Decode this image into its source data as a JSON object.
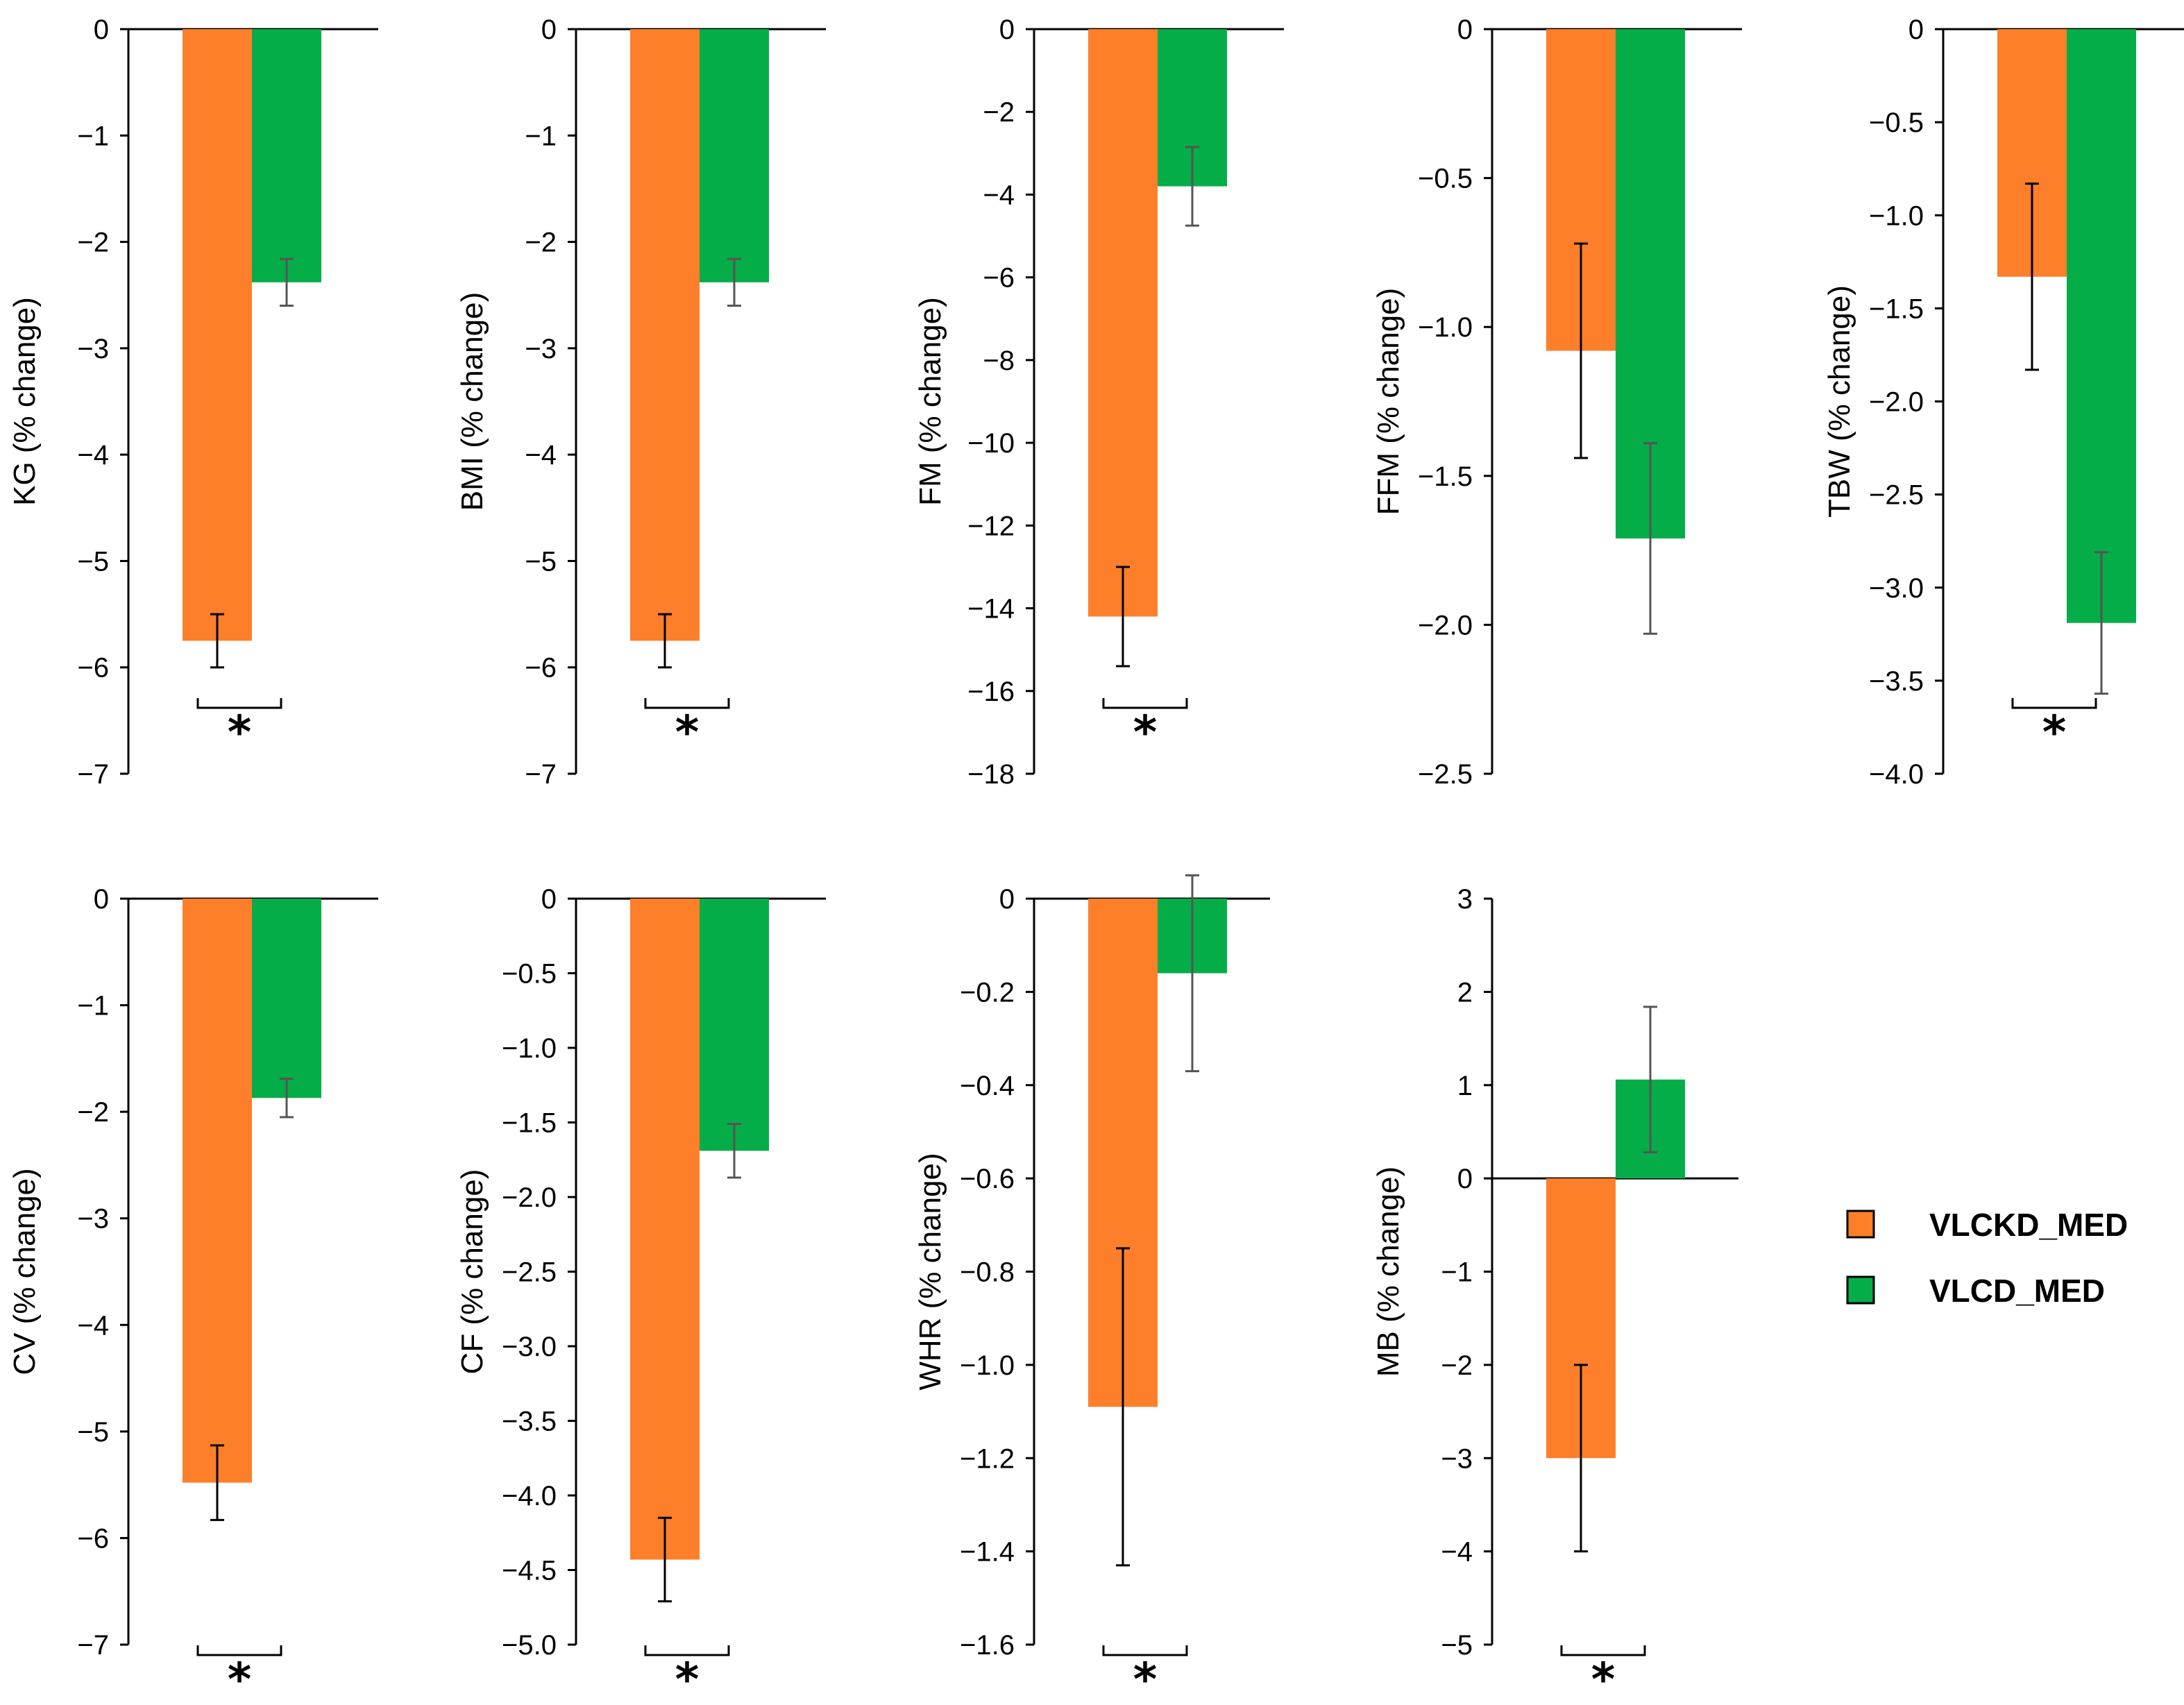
{
  "legend": [
    {
      "label": "VLCKD_MED",
      "color": "#fe7f2a"
    },
    {
      "label": "VLCD_MED",
      "color": "#05ad48"
    }
  ],
  "significance_marker": "*",
  "chart_data": [
    {
      "type": "bar",
      "ylabel": "KG (% change)",
      "ylim": [
        -7,
        0
      ],
      "ticks": [
        0,
        -1,
        -2,
        -3,
        -4,
        -5,
        -6,
        -7
      ],
      "tick_labels": [
        "0",
        "−1",
        "−2",
        "−3",
        "−4",
        "−5",
        "−6",
        "−7"
      ],
      "series": [
        {
          "name": "VLCKD_MED",
          "value": -5.75,
          "error": 0.25
        },
        {
          "name": "VLCD_MED",
          "value": -2.38,
          "error": 0.22
        }
      ],
      "significant": true
    },
    {
      "type": "bar",
      "ylabel": "BMI  (% change)",
      "ylim": [
        -7,
        0
      ],
      "ticks": [
        0,
        -1,
        -2,
        -3,
        -4,
        -5,
        -6,
        -7
      ],
      "tick_labels": [
        "0",
        "−1",
        "−2",
        "−3",
        "−4",
        "−5",
        "−6",
        "−7"
      ],
      "series": [
        {
          "name": "VLCKD_MED",
          "value": -5.75,
          "error": 0.25
        },
        {
          "name": "VLCD_MED",
          "value": -2.38,
          "error": 0.22
        }
      ],
      "significant": true
    },
    {
      "type": "bar",
      "ylabel": "FM (% change)",
      "ylim": [
        -18,
        0
      ],
      "ticks": [
        0,
        -2,
        -4,
        -6,
        -8,
        -10,
        -12,
        -14,
        -16,
        -18
      ],
      "tick_labels": [
        "0",
        "−2",
        "−4",
        "−6",
        "−8",
        "−10",
        "−12",
        "−14",
        "−16",
        "−18"
      ],
      "series": [
        {
          "name": "VLCKD_MED",
          "value": -14.2,
          "error": 1.2
        },
        {
          "name": "VLCD_MED",
          "value": -3.8,
          "error": 0.95
        }
      ],
      "significant": true
    },
    {
      "type": "bar",
      "ylabel": "FFM (% change)",
      "ylim": [
        -2.5,
        0
      ],
      "ticks": [
        0,
        -0.5,
        -1.0,
        -1.5,
        -2.0,
        -2.5
      ],
      "tick_labels": [
        "0",
        "−0.5",
        "−1.0",
        "−1.5",
        "−2.0",
        "−2.5"
      ],
      "series": [
        {
          "name": "VLCKD_MED",
          "value": -1.08,
          "error": 0.36
        },
        {
          "name": "VLCD_MED",
          "value": -1.71,
          "error": 0.32
        }
      ],
      "significant": false
    },
    {
      "type": "bar",
      "ylabel": "TBW (% change)",
      "ylim": [
        -4.0,
        0
      ],
      "ticks": [
        0,
        -0.5,
        -1.0,
        -1.5,
        -2.0,
        -2.5,
        -3.0,
        -3.5,
        -4.0
      ],
      "tick_labels": [
        "0",
        "−0.5",
        "−1.0",
        "−1.5",
        "−2.0",
        "−2.5",
        "−3.0",
        "−3.5",
        "−4.0"
      ],
      "series": [
        {
          "name": "VLCKD_MED",
          "value": -1.33,
          "error": 0.5
        },
        {
          "name": "VLCD_MED",
          "value": -3.19,
          "error": 0.38
        }
      ],
      "significant": true
    },
    {
      "type": "bar",
      "ylabel": "CV (% change)",
      "ylim": [
        -7,
        0
      ],
      "ticks": [
        0,
        -1,
        -2,
        -3,
        -4,
        -5,
        -6,
        -7
      ],
      "tick_labels": [
        "0",
        "−1",
        "−2",
        "−3",
        "−4",
        "−5",
        "−6",
        "−7"
      ],
      "series": [
        {
          "name": "VLCKD_MED",
          "value": -5.48,
          "error": 0.35
        },
        {
          "name": "VLCD_MED",
          "value": -1.87,
          "error": 0.18
        }
      ],
      "significant": true
    },
    {
      "type": "bar",
      "ylabel": "CF (% change)",
      "ylim": [
        -5.0,
        0
      ],
      "ticks": [
        0,
        -0.5,
        -1.0,
        -1.5,
        -2.0,
        -2.5,
        -3.0,
        -3.5,
        -4.0,
        -4.5,
        -5.0
      ],
      "tick_labels": [
        "0",
        "−0.5",
        "−1.0",
        "−1.5",
        "−2.0",
        "−2.5",
        "−3.0",
        "−3.5",
        "−4.0",
        "−4.5",
        "−5.0"
      ],
      "series": [
        {
          "name": "VLCKD_MED",
          "value": -4.43,
          "error": 0.28
        },
        {
          "name": "VLCD_MED",
          "value": -1.69,
          "error": 0.18
        }
      ],
      "significant": true
    },
    {
      "type": "bar",
      "ylabel": "WHR (% change)",
      "ylim": [
        -1.6,
        0
      ],
      "ticks": [
        0,
        -0.2,
        -0.4,
        -0.6,
        -0.8,
        -1.0,
        -1.2,
        -1.4,
        -1.6
      ],
      "tick_labels": [
        "0",
        "−0.2",
        "−0.4",
        "−0.6",
        "−0.8",
        "−1.0",
        "−1.2",
        "−1.4",
        "−1.6"
      ],
      "series": [
        {
          "name": "VLCKD_MED",
          "value": -1.09,
          "error": 0.34
        },
        {
          "name": "VLCD_MED",
          "value": -0.16,
          "error": 0.21
        }
      ],
      "significant": true,
      "top_offset": 0.2
    },
    {
      "type": "bar",
      "ylabel": "MB (% change)",
      "ylim": [
        -5,
        3
      ],
      "ticks": [
        3,
        2,
        1,
        0,
        -1,
        -2,
        -3,
        -4,
        -5
      ],
      "tick_labels": [
        "3",
        "2",
        "1",
        "0",
        "−1",
        "−2",
        "−3",
        "−4",
        "−5"
      ],
      "series": [
        {
          "name": "VLCKD_MED",
          "value": -3.0,
          "error": 1.0
        },
        {
          "name": "VLCD_MED",
          "value": 1.06,
          "error": 0.78
        }
      ],
      "significant": true
    }
  ]
}
